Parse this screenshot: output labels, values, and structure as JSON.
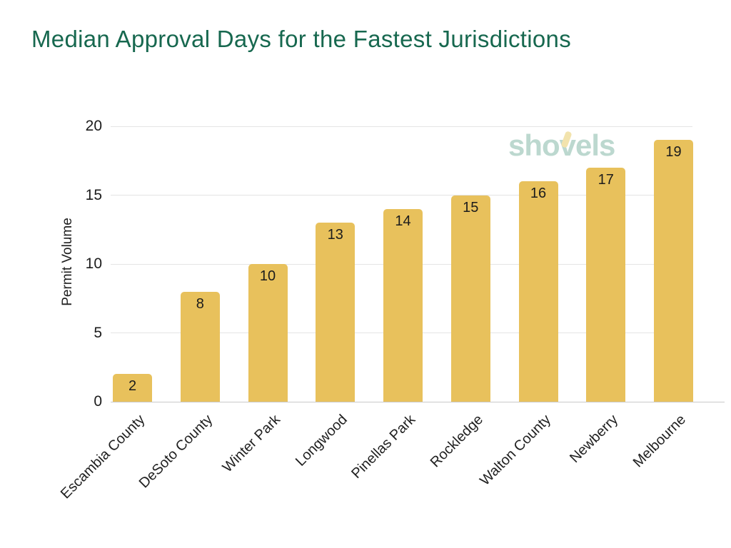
{
  "title": "Median Approval Days for the Fastest Jurisdictions",
  "watermark": {
    "pre": "sho",
    "v": "v",
    "post": "els"
  },
  "chart_data": {
    "type": "bar",
    "title": "Median Approval Days for the Fastest Jurisdictions",
    "categories": [
      "Escambia County",
      "DeSoto County",
      "Winter Park",
      "Longwood",
      "Pinellas Park",
      "Rockledge",
      "Walton County",
      "Newberry",
      "Melbourne"
    ],
    "values": [
      2,
      8,
      10,
      13,
      14,
      15,
      16,
      17,
      19
    ],
    "xlabel": "",
    "ylabel": "Permit Volume",
    "ylim": [
      0,
      20
    ],
    "yticks": [
      0,
      5,
      10,
      15,
      20
    ],
    "grid": true,
    "legend": false,
    "value_labels": "inside-top",
    "x_tick_rotation": 45
  },
  "colors": {
    "background": "#ffffff",
    "title_green": "#17684f",
    "bar_gold": "#e8c15c",
    "text_dark": "#1f1f1f",
    "gridline": "#e4e4e4",
    "baseline": "#c9c9c9",
    "watermark_teal": "#bcd8cf",
    "watermark_handle_yellow": "#f2e3ad"
  }
}
